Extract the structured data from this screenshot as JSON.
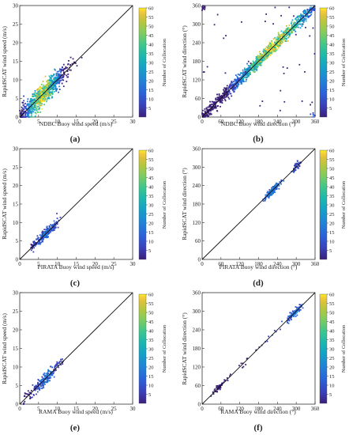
{
  "colorbar": {
    "label": "Number of Collocation",
    "ticks": [
      5,
      10,
      15,
      20,
      25,
      30,
      35,
      40,
      45,
      50,
      55,
      60
    ],
    "min": 0,
    "max": 60,
    "colors": [
      "#3b1f7a",
      "#3a3fb8",
      "#2a62d9",
      "#1f84d6",
      "#14a2c6",
      "#1cb8ad",
      "#3dc68d",
      "#7bcc63",
      "#b3c73f",
      "#dcc23a",
      "#f6cc3a",
      "#f9f21d"
    ]
  },
  "panels": [
    {
      "label": "(a)",
      "xlabel": "NDBC Buoy wind speed (m/s)",
      "ylabel": "RapidSCAT wind speed (m/s)",
      "xticks": [
        "0",
        "5",
        "10",
        "15",
        "20",
        "25",
        "30"
      ],
      "yticks": [
        "0",
        "5",
        "10",
        "15",
        "20",
        "25",
        "30"
      ]
    },
    {
      "label": "(b)",
      "xlabel": "NDBC Buoy wind direction (°)",
      "ylabel": "RapidSCAT wind direction (°)",
      "xticks": [
        "0",
        "60",
        "120",
        "180",
        "240",
        "300",
        "360"
      ],
      "yticks": [
        "0",
        "60",
        "120",
        "180",
        "240",
        "300",
        "360"
      ]
    },
    {
      "label": "(c)",
      "xlabel": "PIRATA Buoy wind speed (m/s)",
      "ylabel": "RapidSCAT wind speed (m/s)",
      "xticks": [
        "0",
        "5",
        "10",
        "15",
        "20",
        "25",
        "30"
      ],
      "yticks": [
        "0",
        "5",
        "10",
        "15",
        "20",
        "25",
        "30"
      ]
    },
    {
      "label": "(d)",
      "xlabel": "PIRATA Buoy wind direction (°)",
      "ylabel": "RapidSCAT wind direction (°)",
      "xticks": [
        "0",
        "60",
        "120",
        "180",
        "240",
        "300",
        "360"
      ],
      "yticks": [
        "0",
        "60",
        "120",
        "180",
        "240",
        "300",
        "360"
      ]
    },
    {
      "label": "(e)",
      "xlabel": "RAMA Buoy wind speed (m/s)",
      "ylabel": "RapidSCAT wind speed (m/s)",
      "xticks": [
        "0",
        "5",
        "10",
        "15",
        "20",
        "25",
        "30"
      ],
      "yticks": [
        "0",
        "5",
        "10",
        "15",
        "20",
        "25",
        "30"
      ]
    },
    {
      "label": "(f)",
      "xlabel": "RAMA Buoy wind direction (°)",
      "ylabel": "RapidSCAT wind direction (°)",
      "xticks": [
        "0",
        "60",
        "120",
        "180",
        "240",
        "300",
        "360"
      ],
      "yticks": [
        "0",
        "60",
        "120",
        "180",
        "240",
        "300",
        "360"
      ]
    }
  ],
  "chart_data": [
    {
      "type": "scatter",
      "title": "",
      "xlabel": "NDBC Buoy wind speed (m/s)",
      "ylabel": "RapidSCAT wind speed (m/s)",
      "xlim": [
        0,
        30
      ],
      "ylim": [
        0,
        30
      ],
      "reference_line": "y=x",
      "colorbar": "Number of Collocation",
      "cluster": {
        "x_range": [
          0,
          17
        ],
        "y_range": [
          0,
          18
        ],
        "density_peak": [
          6,
          6
        ]
      }
    },
    {
      "type": "scatter",
      "title": "",
      "xlabel": "NDBC Buoy wind direction (°)",
      "ylabel": "RapidSCAT wind direction (°)",
      "xlim": [
        0,
        360
      ],
      "ylim": [
        0,
        360
      ],
      "reference_line": "y=x",
      "colorbar": "Number of Collocation",
      "cluster": {
        "x_range": [
          0,
          360
        ],
        "y_range": [
          0,
          360
        ],
        "density_peak": [
          230,
          230
        ]
      }
    },
    {
      "type": "scatter",
      "title": "",
      "xlabel": "PIRATA Buoy wind speed (m/s)",
      "ylabel": "RapidSCAT wind speed (m/s)",
      "xlim": [
        0,
        30
      ],
      "ylim": [
        0,
        30
      ],
      "reference_line": "y=x",
      "colorbar": "Number of Collocation",
      "cluster": {
        "x_range": [
          3,
          10
        ],
        "y_range": [
          3,
          10.5
        ],
        "density_peak": [
          7,
          7
        ]
      }
    },
    {
      "type": "scatter",
      "title": "",
      "xlabel": "PIRATA Buoy wind direction (°)",
      "ylabel": "RapidSCAT wind direction (°)",
      "xlim": [
        0,
        360
      ],
      "ylim": [
        0,
        360
      ],
      "reference_line": "y=x",
      "colorbar": "Number of Collocation",
      "cluster": {
        "x_range": [
          180,
          320
        ],
        "y_range": [
          180,
          320
        ],
        "density_peak": [
          225,
          225
        ]
      }
    },
    {
      "type": "scatter",
      "title": "",
      "xlabel": "RAMA Buoy wind speed (m/s)",
      "ylabel": "RapidSCAT wind speed (m/s)",
      "xlim": [
        0,
        30
      ],
      "ylim": [
        0,
        30
      ],
      "reference_line": "y=x",
      "colorbar": "Number of Collocation",
      "cluster": {
        "x_range": [
          1,
          12
        ],
        "y_range": [
          1,
          15
        ],
        "density_peak": [
          7,
          7
        ]
      }
    },
    {
      "type": "scatter",
      "title": "",
      "xlabel": "RAMA Buoy wind direction (°)",
      "ylabel": "RapidSCAT wind direction (°)",
      "xlim": [
        0,
        360
      ],
      "ylim": [
        0,
        360
      ],
      "reference_line": "y=x",
      "colorbar": "Number of Collocation",
      "cluster": {
        "x_range": [
          30,
          320
        ],
        "y_range": [
          30,
          320
        ],
        "density_peak": [
          300,
          300
        ]
      }
    }
  ]
}
